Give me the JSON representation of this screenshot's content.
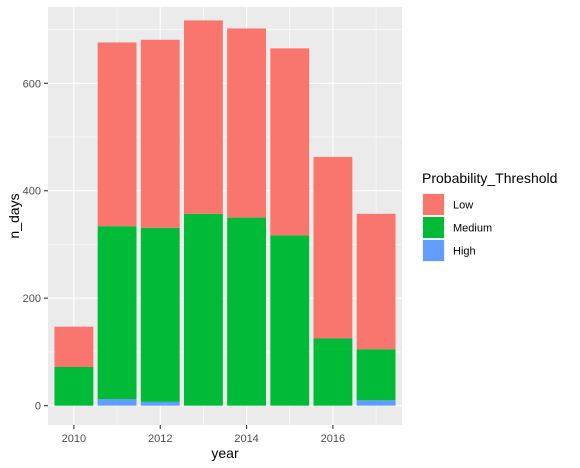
{
  "chart_data": {
    "type": "bar",
    "stacked": true,
    "x": [
      2010,
      2011,
      2012,
      2013,
      2014,
      2015,
      2016,
      2017
    ],
    "x_ticks": [
      "2010",
      "2012",
      "2014",
      "2016"
    ],
    "y_ticks": [
      "0",
      "200",
      "400",
      "600"
    ],
    "xlabel": "year",
    "ylabel": "n_days",
    "xlim": [
      2009.4,
      2017.6
    ],
    "ylim": [
      -36,
      742
    ],
    "grid": true,
    "legend": {
      "title": "Probability_Threshold",
      "position": "right"
    },
    "series": [
      {
        "name": "High",
        "color": "#619CFF",
        "values": [
          0,
          12,
          7,
          0,
          0,
          0,
          0,
          10
        ]
      },
      {
        "name": "Medium",
        "color": "#00BA38",
        "values": [
          72,
          322,
          324,
          357,
          350,
          317,
          125,
          95
        ]
      },
      {
        "name": "Low",
        "color": "#F8766D",
        "values": [
          75,
          342,
          350,
          360,
          352,
          348,
          338,
          252
        ]
      }
    ],
    "legend_order": [
      "Low",
      "Medium",
      "High"
    ]
  }
}
